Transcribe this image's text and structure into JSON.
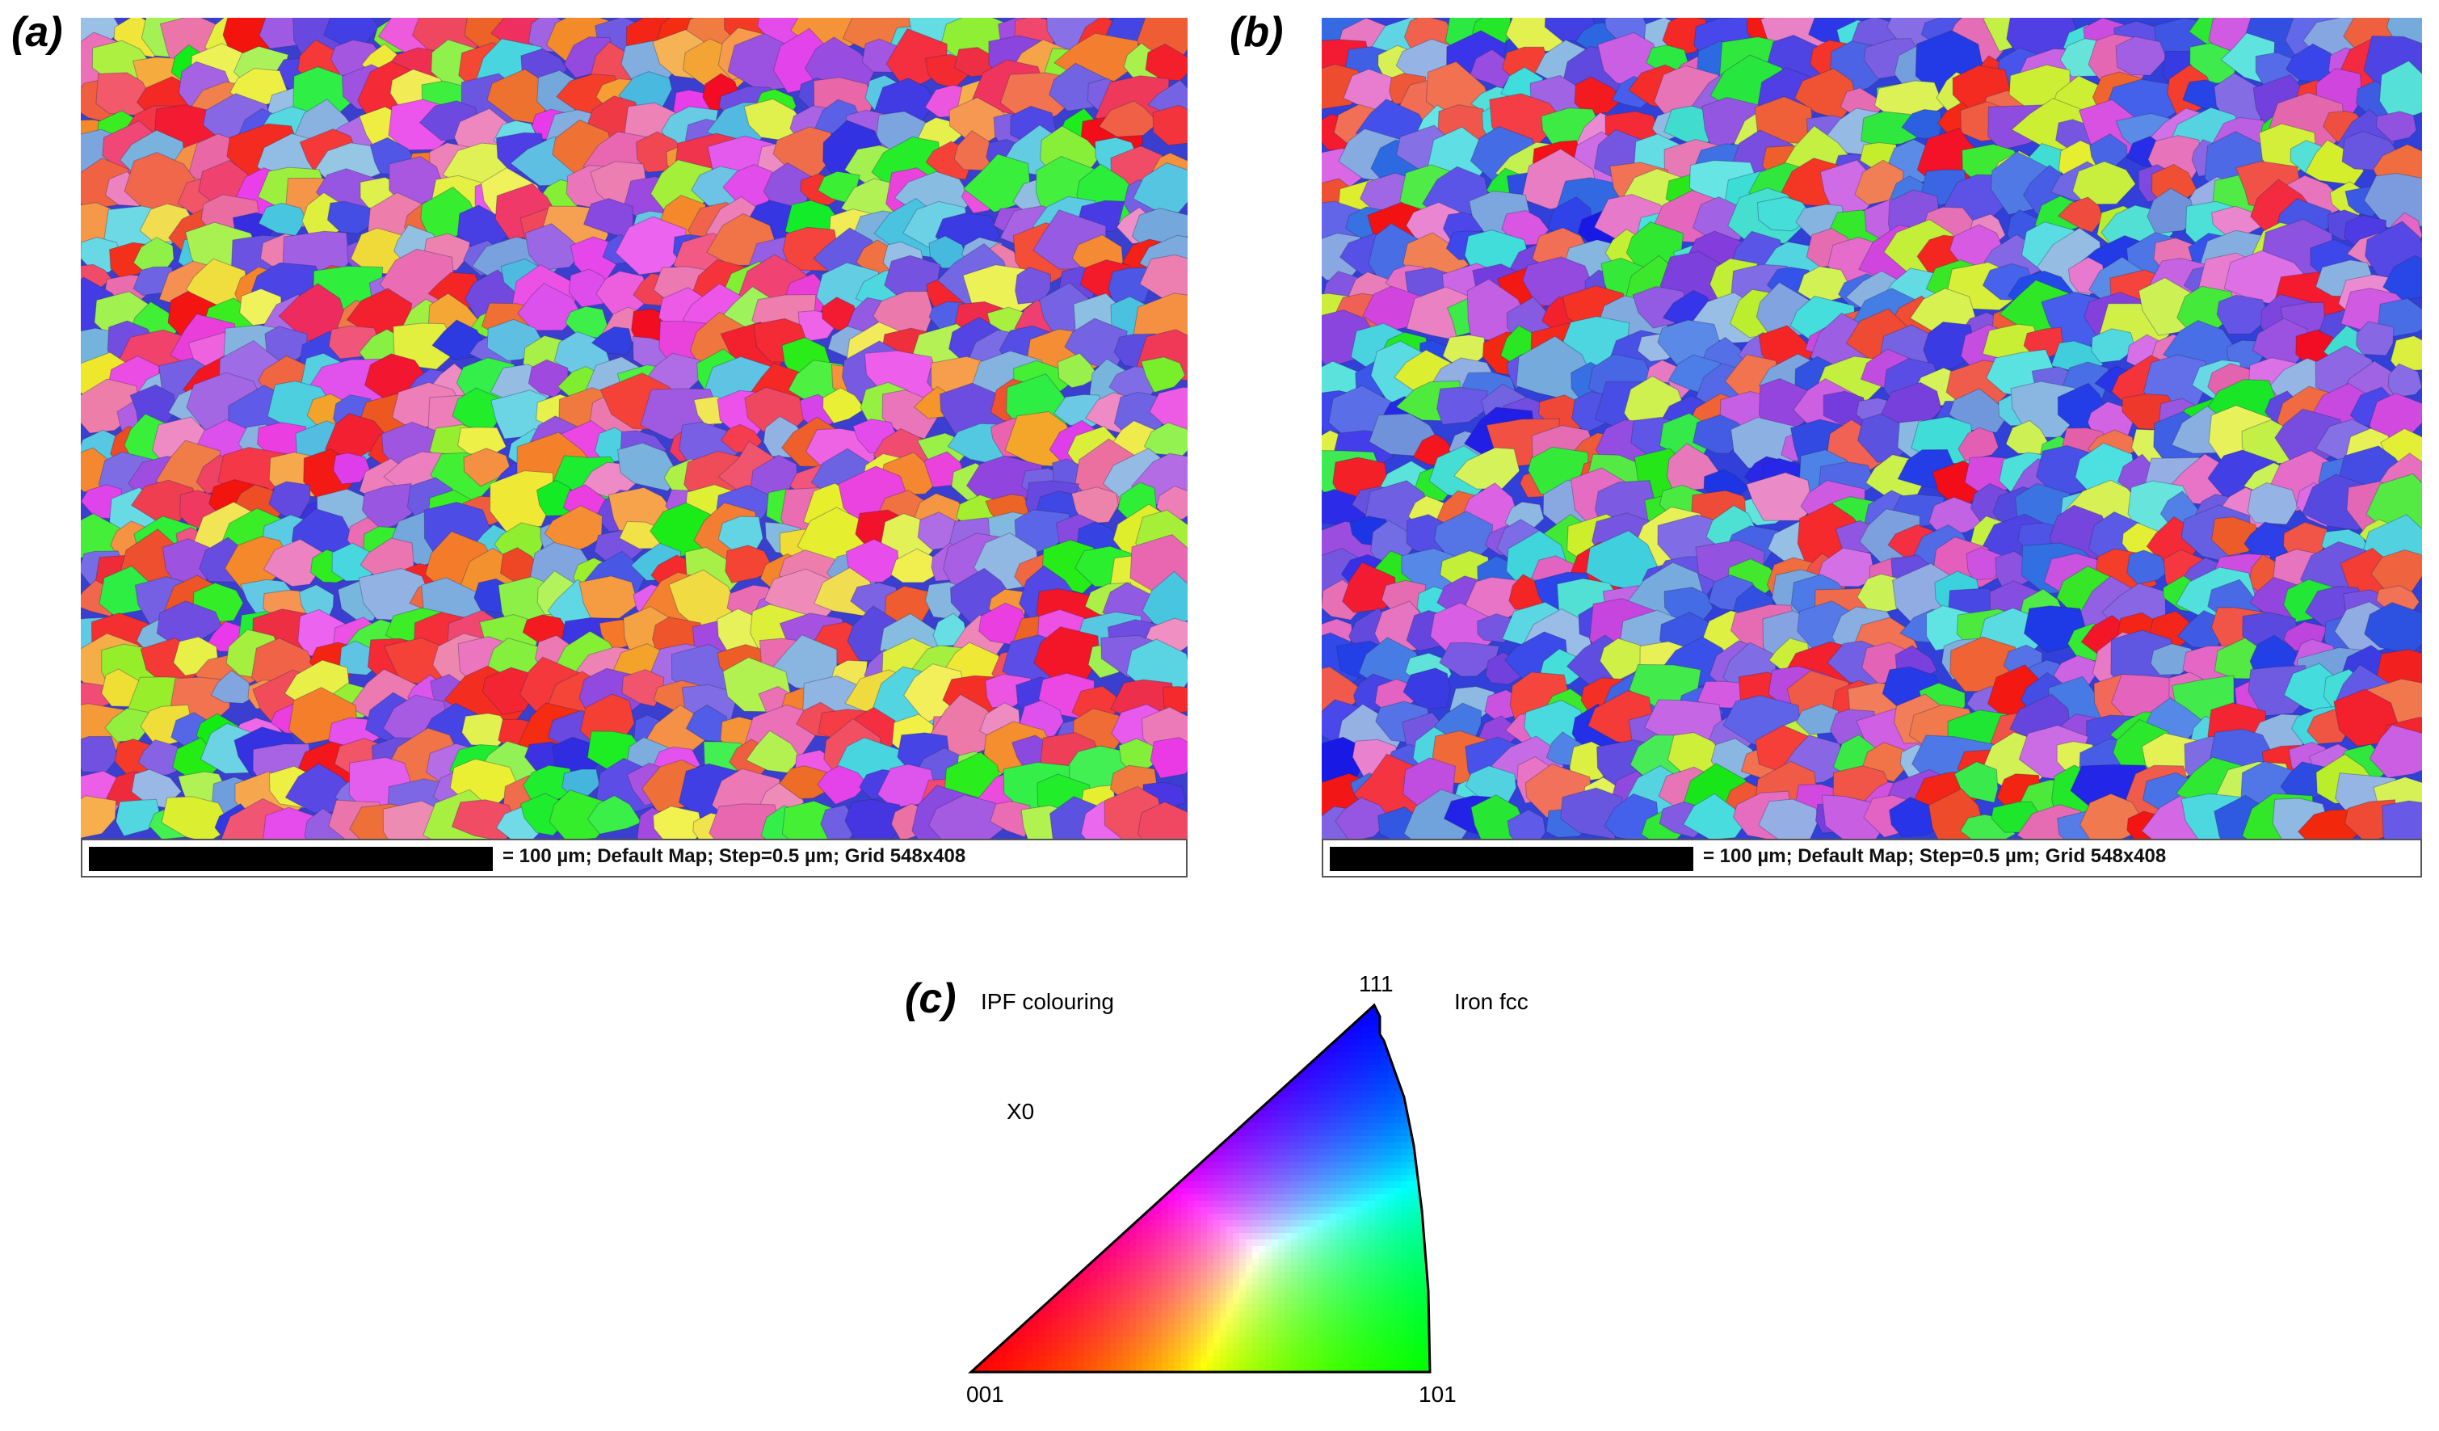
{
  "panels": {
    "a": {
      "label": "(a)",
      "scale_text": "= 100 µm; Default Map; Step=0.5 µm; Grid 548x408"
    },
    "b": {
      "label": "(b)",
      "scale_text": "= 100 µm; Default Map; Step=0.5 µm; Grid 548x408"
    },
    "c": {
      "label": "(c)",
      "title": "IPF colouring",
      "phase": "Iron fcc",
      "direction": "X0",
      "corners": {
        "top": "111",
        "left": "001",
        "right": "101"
      },
      "corner_colors": {
        "001": "#ff0000",
        "101": "#00ff00",
        "111": "#0000ff"
      }
    }
  }
}
